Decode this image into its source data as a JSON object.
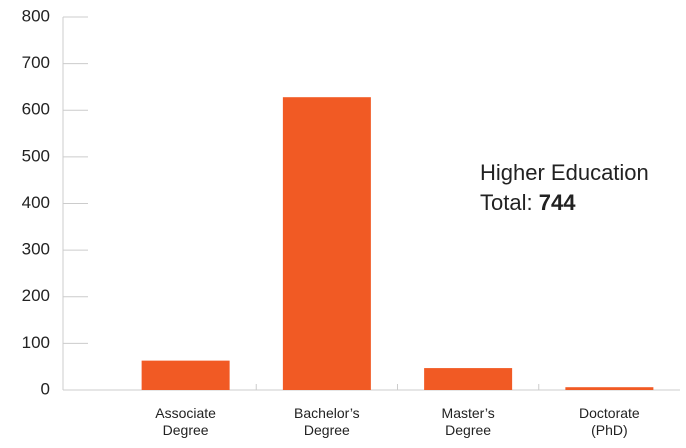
{
  "chart_data": {
    "type": "bar",
    "categories": [
      "Associate Degree",
      "Bachelor’s Degree",
      "Master’s Degree",
      "Doctorate (PhD)"
    ],
    "values": [
      63,
      628,
      47,
      6
    ],
    "color": "#f15a24",
    "ylim": [
      0,
      800
    ],
    "yticks": [
      0,
      100,
      200,
      300,
      400,
      500,
      600,
      700,
      800
    ],
    "annotation": {
      "title": "Higher Education",
      "label": "Total:",
      "total": 744
    }
  }
}
